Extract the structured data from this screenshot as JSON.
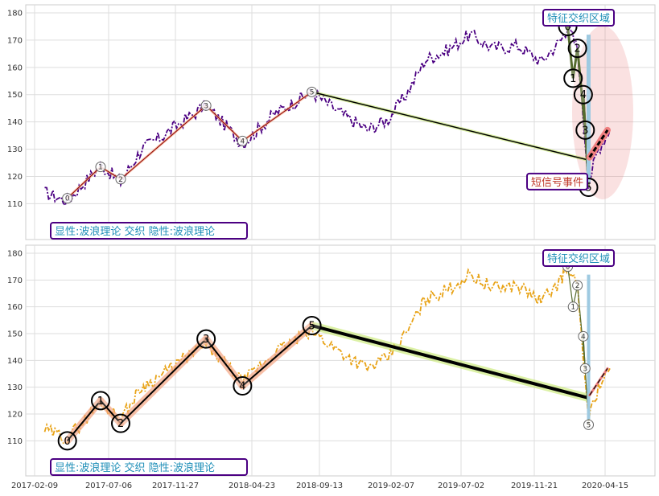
{
  "chart_data": {
    "type": "line",
    "x_ticks": [
      "2017-02-09",
      "2017-07-06",
      "2017-11-27",
      "2018-04-23",
      "2018-09-13",
      "2019-02-07",
      "2019-07-02",
      "2019-11-21",
      "2020-04-15"
    ],
    "y_ticks": [
      110,
      120,
      130,
      140,
      150,
      160,
      170,
      180
    ],
    "ylim": [
      104,
      182
    ],
    "grid": true,
    "panels": [
      {
        "name": "top",
        "price_color": "#4b0082",
        "label_box": "显性:波浪理论 交织 隐性:波浪理论",
        "region_box": "特征交织区域",
        "event_box": "短信号事件",
        "wave_main": [
          {
            "label": "0",
            "date": "2017-04-15",
            "price": 112
          },
          {
            "label": "1",
            "date": "2017-06-20",
            "price": 123.5
          },
          {
            "label": "2",
            "date": "2017-08-01",
            "price": 119
          },
          {
            "label": "3",
            "date": "2018-01-25",
            "price": 146
          },
          {
            "label": "4",
            "date": "2018-04-05",
            "price": 133
          },
          {
            "label": "5",
            "date": "2018-08-28",
            "price": 151
          }
        ],
        "wave_main_style": "small",
        "wave_secondary": [
          {
            "label": "0",
            "date": "2020-01-29",
            "price": 175
          },
          {
            "label": "1",
            "date": "2020-02-09",
            "price": 156
          },
          {
            "label": "2",
            "date": "2020-02-18",
            "price": 167
          },
          {
            "label": "3",
            "date": "2020-03-05",
            "price": 137
          },
          {
            "label": "4",
            "date": "2020-03-01",
            "price": 150
          },
          {
            "label": "5",
            "date": "2020-03-12",
            "price": 116
          }
        ],
        "wave_secondary_style": "large"
      },
      {
        "name": "bottom",
        "price_color": "#e8a317",
        "label_box": "显性:波浪理论 交织 隐性:波浪理论",
        "region_box": "特征交织区域",
        "wave_main": [
          {
            "label": "0",
            "date": "2017-04-15",
            "price": 110
          },
          {
            "label": "1",
            "date": "2017-06-20",
            "price": 125
          },
          {
            "label": "2",
            "date": "2017-08-01",
            "price": 116.5
          },
          {
            "label": "3",
            "date": "2018-01-25",
            "price": 148
          },
          {
            "label": "4",
            "date": "2018-04-05",
            "price": 130.5
          },
          {
            "label": "5",
            "date": "2018-08-28",
            "price": 153
          }
        ],
        "wave_main_style": "large",
        "wave_secondary": [
          {
            "label": "0",
            "date": "2020-01-29",
            "price": 175
          },
          {
            "label": "1",
            "date": "2020-02-09",
            "price": 160
          },
          {
            "label": "2",
            "date": "2020-02-18",
            "price": 168
          },
          {
            "label": "3",
            "date": "2020-03-05",
            "price": 137
          },
          {
            "label": "4",
            "date": "2020-03-01",
            "price": 149
          },
          {
            "label": "5",
            "date": "2020-03-12",
            "price": 116
          }
        ],
        "wave_secondary_style": "small"
      }
    ]
  }
}
